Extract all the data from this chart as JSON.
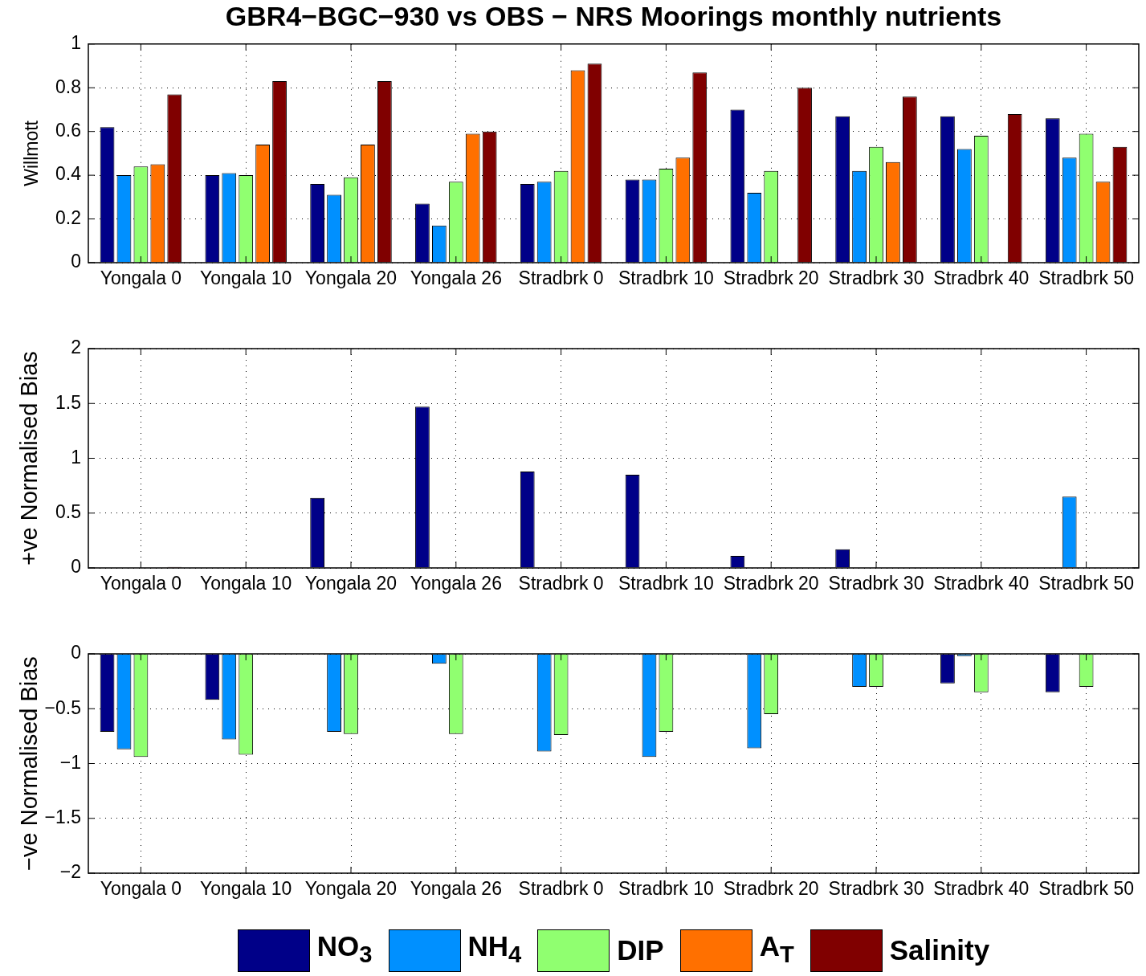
{
  "chart_data": [
    {
      "type": "bar",
      "title": "GBR4−BGC−930 vs OBS − NRS Moorings monthly nutrients",
      "ylabel": "Willmott",
      "categories": [
        "Yongala 0",
        "Yongala 10",
        "Yongala 20",
        "Yongala 26",
        "Stradbrk 0",
        "Stradbrk 10",
        "Stradbrk 20",
        "Stradbrk 30",
        "Stradbrk 40",
        "Stradbrk 50"
      ],
      "series": [
        {
          "color": "#000088",
          "values": [
            0.62,
            0.4,
            0.36,
            0.27,
            0.36,
            0.38,
            0.7,
            0.67,
            0.67,
            0.66
          ]
        },
        {
          "color": "#0090ff",
          "values": [
            0.4,
            0.41,
            0.31,
            0.17,
            0.37,
            0.38,
            0.32,
            0.42,
            0.52,
            0.48
          ]
        },
        {
          "color": "#90ff70",
          "values": [
            0.44,
            0.4,
            0.39,
            0.37,
            0.42,
            0.43,
            0.42,
            0.53,
            0.58,
            0.59
          ]
        },
        {
          "color": "#ff7000",
          "values": [
            0.45,
            0.54,
            0.54,
            0.59,
            0.88,
            0.48,
            0,
            0.46,
            0,
            0.37
          ]
        },
        {
          "color": "#800000",
          "values": [
            0.77,
            0.83,
            0.83,
            0.6,
            0.91,
            0.87,
            0.8,
            0.76,
            0.68,
            0.53
          ]
        }
      ],
      "ylim": [
        0,
        1
      ],
      "yticks": [
        0,
        0.2,
        0.4,
        0.6,
        0.8,
        1
      ],
      "grid": true
    },
    {
      "type": "bar",
      "ylabel": "+ve Normalised Bias",
      "categories": [
        "Yongala 0",
        "Yongala 10",
        "Yongala 20",
        "Yongala 26",
        "Stradbrk 0",
        "Stradbrk 10",
        "Stradbrk 20",
        "Stradbrk 30",
        "Stradbrk 40",
        "Stradbrk 50"
      ],
      "series": [
        {
          "color": "#000088",
          "values": [
            0,
            0,
            0.64,
            1.47,
            0.88,
            0.85,
            0.11,
            0.17,
            0,
            0
          ]
        },
        {
          "color": "#0090ff",
          "values": [
            0,
            0,
            0,
            0,
            0,
            0,
            0,
            0,
            0,
            0.65
          ]
        },
        {
          "color": "#90ff70",
          "values": [
            0,
            0,
            0,
            0,
            0,
            0,
            0,
            0,
            0,
            0
          ]
        },
        {
          "color": "#ff7000",
          "values": [
            0,
            0,
            0,
            0,
            0,
            0,
            0,
            0,
            0,
            0
          ]
        },
        {
          "color": "#800000",
          "values": [
            0.01,
            0.005,
            0.005,
            0,
            0,
            0,
            0,
            0,
            0,
            0
          ]
        }
      ],
      "ylim": [
        0,
        2
      ],
      "yticks": [
        0,
        0.5,
        1,
        1.5,
        2
      ],
      "grid": true
    },
    {
      "type": "bar",
      "ylabel": "−ve Normalised Bias",
      "categories": [
        "Yongala 0",
        "Yongala 10",
        "Yongala 20",
        "Yongala 26",
        "Stradbrk 0",
        "Stradbrk 10",
        "Stradbrk 20",
        "Stradbrk 30",
        "Stradbrk 40",
        "Stradbrk 50"
      ],
      "series": [
        {
          "name": "NO$_{3}$",
          "color": "#000088",
          "values": [
            -0.71,
            -0.42,
            0,
            0,
            0,
            0,
            0,
            0,
            -0.27,
            -0.35
          ]
        },
        {
          "name": "NH$_{4}$",
          "color": "#0090ff",
          "values": [
            -0.87,
            -0.78,
            -0.71,
            -0.09,
            -0.89,
            -0.94,
            -0.86,
            -0.3,
            -0.02,
            0
          ]
        },
        {
          "name": "DIP",
          "color": "#90ff70",
          "values": [
            -0.94,
            -0.92,
            -0.73,
            -0.73,
            -0.74,
            -0.71,
            -0.55,
            -0.3,
            -0.35,
            -0.3
          ]
        },
        {
          "name": "A$_{T}$",
          "color": "#ff7000",
          "values": [
            0,
            0,
            0,
            0,
            0,
            0,
            0,
            0,
            0,
            0
          ]
        },
        {
          "name": "Salinity",
          "color": "#800000",
          "values": [
            0,
            0,
            0,
            0,
            0,
            0,
            0,
            0,
            0,
            0
          ]
        }
      ],
      "ylim": [
        -2,
        0
      ],
      "yticks": [
        {
          "value": -2,
          "label": "−2"
        },
        {
          "value": -1.5,
          "label": "−1.5"
        },
        {
          "value": -1,
          "label": "−1"
        },
        {
          "value": -0.5,
          "label": "−0.5"
        },
        0
      ],
      "grid": true,
      "legend": "bottom"
    }
  ]
}
